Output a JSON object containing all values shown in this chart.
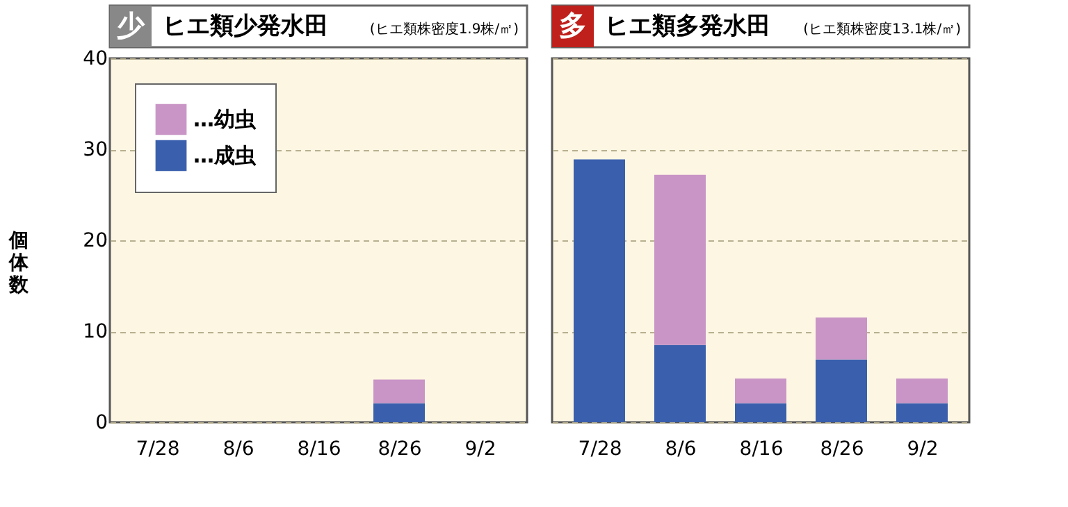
{
  "chart_data": [
    {
      "type": "bar",
      "stacked": true,
      "title": "ヒエ類少発水田",
      "subtitle": "(ヒエ類株密度1.9株/㎡)",
      "annotations": [
        "少"
      ],
      "ylabel": "個体数",
      "categories": [
        "7/28",
        "8/6",
        "8/16",
        "8/26",
        "9/2"
      ],
      "ylim": [
        0,
        40
      ],
      "yticks": [
        0,
        10,
        20,
        30,
        40
      ],
      "grid": "y",
      "legend": "top left",
      "series": [
        {
          "name": "…成虫",
          "color": "#3a5fad",
          "values": [
            0,
            0,
            0,
            2.1,
            0
          ]
        },
        {
          "name": "…幼虫",
          "color": "#c995c6",
          "values": [
            0,
            0,
            0,
            2.6,
            0
          ]
        }
      ]
    },
    {
      "type": "bar",
      "stacked": true,
      "title": "ヒエ類多発水田",
      "subtitle": "(ヒエ類株密度13.1株/㎡)",
      "annotations": [
        "多"
      ],
      "categories": [
        "7/28",
        "8/6",
        "8/16",
        "8/26",
        "9/2"
      ],
      "ylim": [
        0,
        40
      ],
      "yticks": [
        0,
        10,
        20,
        30,
        40
      ],
      "grid": "y",
      "tick_labels": "x",
      "series": [
        {
          "color": "#3a5fad",
          "values": [
            28.9,
            8.5,
            2.1,
            6.9,
            2.1
          ]
        },
        {
          "color": "#c995c6",
          "values": [
            0,
            18.7,
            2.7,
            4.6,
            2.7
          ]
        }
      ]
    }
  ]
}
